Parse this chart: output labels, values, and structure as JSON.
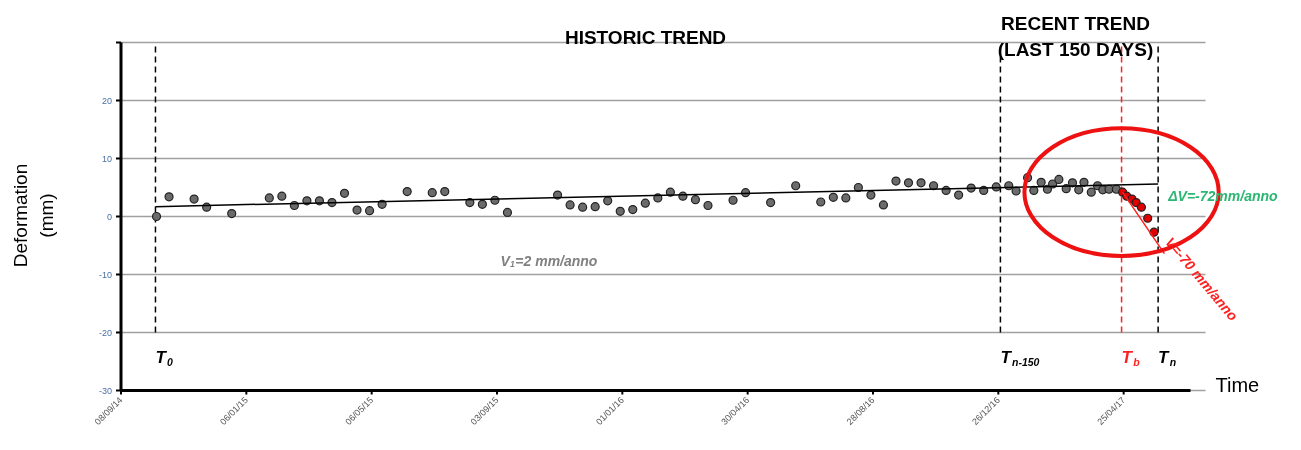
{
  "chart_data": {
    "type": "scatter",
    "xlabel": "Time",
    "ylabel": "Deformation\n(mm)",
    "xlim": [
      "2014-09-08",
      "2017-06-28"
    ],
    "ylim": [
      -30,
      30
    ],
    "xticks": [
      {
        "value": "2014-09-08",
        "label": "08/09/14"
      },
      {
        "value": "2015-01-06",
        "label": "06/01/15"
      },
      {
        "value": "2015-05-06",
        "label": "06/05/15"
      },
      {
        "value": "2015-09-03",
        "label": "03/09/15"
      },
      {
        "value": "2016-01-01",
        "label": "01/01/16"
      },
      {
        "value": "2016-04-30",
        "label": "30/04/16"
      },
      {
        "value": "2016-08-28",
        "label": "28/08/16"
      },
      {
        "value": "2016-12-26",
        "label": "26/12/16"
      },
      {
        "value": "2017-04-25",
        "label": "25/04/17"
      }
    ],
    "yticks": [
      -30,
      -20,
      -10,
      0,
      10,
      20,
      {
        "value": 30,
        "label": null
      }
    ],
    "grid": "y",
    "marker": "circle",
    "series": [
      {
        "color": "#6b6b6b",
        "x": [
          "2014-10-12",
          "2014-10-24",
          "2014-11-17",
          "2014-11-29",
          "2014-12-23",
          "2015-01-28",
          "2015-02-09",
          "2015-02-21",
          "2015-03-05",
          "2015-03-17",
          "2015-03-29",
          "2015-04-10",
          "2015-04-22",
          "2015-05-04",
          "2015-05-16",
          "2015-06-09",
          "2015-07-03",
          "2015-07-15",
          "2015-08-08",
          "2015-08-20",
          "2015-09-01",
          "2015-09-13",
          "2015-10-31",
          "2015-11-12",
          "2015-11-24",
          "2015-12-06",
          "2015-12-18",
          "2015-12-30",
          "2016-01-11",
          "2016-01-23",
          "2016-02-04",
          "2016-02-16",
          "2016-02-28",
          "2016-03-11",
          "2016-03-23",
          "2016-04-16",
          "2016-04-28",
          "2016-05-22",
          "2016-06-15",
          "2016-07-09",
          "2016-07-21",
          "2016-08-02",
          "2016-08-14",
          "2016-08-26",
          "2016-09-07",
          "2016-09-19",
          "2016-10-01",
          "2016-10-13",
          "2016-10-25",
          "2016-11-06",
          "2016-11-18",
          "2016-11-30",
          "2016-12-12",
          "2016-12-24",
          "2017-01-05",
          "2017-01-12",
          "2017-01-23",
          "2017-01-29",
          "2017-02-05",
          "2017-02-11",
          "2017-02-16",
          "2017-02-22",
          "2017-03-01",
          "2017-03-07",
          "2017-03-13",
          "2017-03-18",
          "2017-03-25",
          "2017-03-31",
          "2017-04-05",
          "2017-04-11",
          "2017-04-18"
        ],
        "values": [
          0,
          3.4,
          3.0,
          1.6,
          0.5,
          3.2,
          3.5,
          1.9,
          2.7,
          2.7,
          2.4,
          4.0,
          1.1,
          1.0,
          2.1,
          4.3,
          4.1,
          4.3,
          2.4,
          2.1,
          2.8,
          0.7,
          3.7,
          2.0,
          1.6,
          1.7,
          2.7,
          0.9,
          1.2,
          2.3,
          3.2,
          4.2,
          3.5,
          2.9,
          1.9,
          2.8,
          4.1,
          2.4,
          5.3,
          2.5,
          3.3,
          3.2,
          5.0,
          3.7,
          2.0,
          6.1,
          5.8,
          5.8,
          5.3,
          4.5,
          3.7,
          4.9,
          4.5,
          5.1,
          5.3,
          4.4,
          6.7,
          4.5,
          5.9,
          4.7,
          5.6,
          6.4,
          4.8,
          5.8,
          4.6,
          5.9,
          4.2,
          5.3,
          4.6,
          4.7,
          4.7
        ]
      },
      {
        "color": "#e00000",
        "x": [
          "2017-04-24",
          "2017-04-28",
          "2017-05-03",
          "2017-05-07",
          "2017-05-12",
          "2017-05-18",
          "2017-05-24"
        ],
        "values": [
          4.2,
          3.5,
          3.0,
          2.4,
          1.6,
          -0.3,
          -2.7
        ]
      },
      {
        "type": "line",
        "color": "#000000",
        "marker": "none",
        "x": [
          "2014-10-11",
          "2017-05-28"
        ],
        "values": [
          1.7,
          5.6
        ]
      },
      {
        "type": "line",
        "color": "#ff2020",
        "marker": "none",
        "x": [
          "2017-04-24",
          "2017-06-03"
        ],
        "values": [
          4.2,
          -6.4
        ]
      }
    ],
    "ref_lines": [
      {
        "axis": "x",
        "value": "2014-10-11",
        "label": "T$_{0}$",
        "color": "#000000",
        "line_style": "dashed"
      },
      {
        "axis": "x",
        "value": "2016-12-28",
        "label": "T$_{n-150}$",
        "color": "#000000",
        "line_style": "dashed"
      },
      {
        "axis": "x",
        "value": "2017-04-23",
        "label": "T$_{b}$",
        "color": "#ff2020",
        "line_style": "dashed"
      },
      {
        "axis": "x",
        "value": "2017-05-28",
        "label": "T$_{n}$",
        "color": "#000000",
        "line_style": "dashed"
      }
    ],
    "annotations": [
      "HISTORIC TREND",
      "RECENT TREND\n(LAST 150 DAYS)",
      "V$_{1}$=2 mm/anno",
      {
        "text": "ΔV=-72mm/anno",
        "x": "2017-05-30",
        "y": 3.5
      },
      {
        "text": "V=-70 mm/anno",
        "x": "2017-05-30",
        "y": -5.3
      }
    ]
  }
}
